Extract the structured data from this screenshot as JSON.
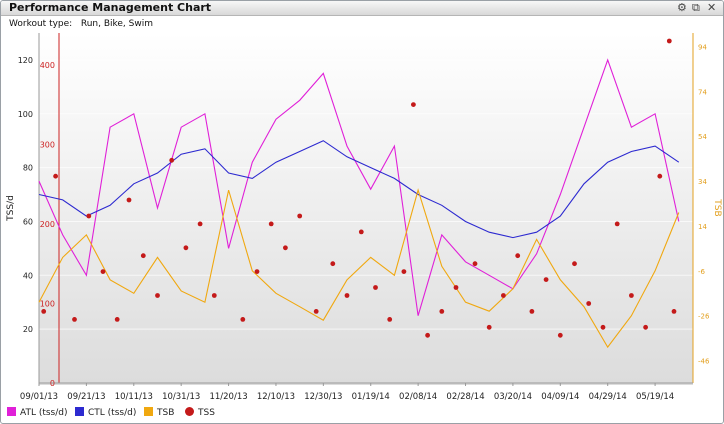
{
  "window": {
    "title": "Performance Management Chart",
    "icons": [
      "gear-icon",
      "popout-icon",
      "close-icon"
    ]
  },
  "header": {
    "workout_label": "Workout type:",
    "workout_value": "Run, Bike, Swim"
  },
  "colors": {
    "atl": "#e020d8",
    "ctl": "#2d2ad0",
    "tsb": "#f0a810",
    "tss": "#c41a1a",
    "left_axis_tss": "#cc2222",
    "right_axis": "#e3a020"
  },
  "chart_data": {
    "type": "line",
    "x_ticks": [
      "09/01/13",
      "09/21/13",
      "10/11/13",
      "10/31/13",
      "11/20/13",
      "12/10/13",
      "12/30/13",
      "01/19/14",
      "02/08/14",
      "02/28/14",
      "03/20/14",
      "04/09/14",
      "04/29/14",
      "05/19/14"
    ],
    "y_left": {
      "label": "TSS/d",
      "ticks": [
        20,
        40,
        60,
        80,
        100,
        120
      ],
      "ylim": [
        0,
        130
      ]
    },
    "y_left_tss": {
      "ticks": [
        0,
        100,
        200,
        300,
        400
      ],
      "ylim": [
        0,
        440
      ]
    },
    "y_right": {
      "label": "TSB",
      "ticks": [
        -46,
        -26,
        -6,
        14,
        34,
        54,
        74,
        94
      ],
      "ylim": [
        -56,
        100
      ]
    },
    "legend": {
      "placement": "bottom-left"
    },
    "series": [
      {
        "name": "ATL (tss/d)",
        "axis": "left",
        "x": [
          "09/01/13",
          "09/11/13",
          "09/21/13",
          "10/01/13",
          "10/11/13",
          "10/21/13",
          "10/31/13",
          "11/10/13",
          "11/20/13",
          "11/30/13",
          "12/10/13",
          "12/20/13",
          "12/30/13",
          "01/09/14",
          "01/19/14",
          "01/29/14",
          "02/08/14",
          "02/18/14",
          "02/28/14",
          "03/10/14",
          "03/20/14",
          "03/30/14",
          "04/09/14",
          "04/19/14",
          "04/29/14",
          "05/09/14",
          "05/19/14",
          "05/29/14"
        ],
        "values": [
          75,
          55,
          40,
          95,
          100,
          65,
          95,
          100,
          50,
          82,
          98,
          105,
          115,
          88,
          72,
          88,
          25,
          55,
          45,
          40,
          35,
          48,
          70,
          95,
          120,
          95,
          100,
          60
        ]
      },
      {
        "name": "CTL (tss/d)",
        "axis": "left",
        "x": [
          "09/01/13",
          "09/11/13",
          "09/21/13",
          "10/01/13",
          "10/11/13",
          "10/21/13",
          "10/31/13",
          "11/10/13",
          "11/20/13",
          "11/30/13",
          "12/10/13",
          "12/20/13",
          "12/30/13",
          "01/09/14",
          "01/19/14",
          "01/29/14",
          "02/08/14",
          "02/18/14",
          "02/28/14",
          "03/10/14",
          "03/20/14",
          "03/30/14",
          "04/09/14",
          "04/19/14",
          "04/29/14",
          "05/09/14",
          "05/19/14",
          "05/29/14"
        ],
        "values": [
          70,
          68,
          62,
          66,
          74,
          78,
          85,
          87,
          78,
          76,
          82,
          86,
          90,
          84,
          80,
          76,
          70,
          66,
          60,
          56,
          54,
          56,
          62,
          74,
          82,
          86,
          88,
          82
        ]
      },
      {
        "name": "TSB",
        "axis": "right",
        "x": [
          "09/01/13",
          "09/11/13",
          "09/21/13",
          "10/01/13",
          "10/11/13",
          "10/21/13",
          "10/31/13",
          "11/10/13",
          "11/20/13",
          "11/30/13",
          "12/10/13",
          "12/20/13",
          "12/30/13",
          "01/09/14",
          "01/19/14",
          "01/29/14",
          "02/08/14",
          "02/18/14",
          "02/28/14",
          "03/10/14",
          "03/20/14",
          "03/30/14",
          "04/09/14",
          "04/19/14",
          "04/29/14",
          "05/09/14",
          "05/19/14",
          "05/29/14"
        ],
        "values": [
          -20,
          0,
          10,
          -10,
          -16,
          0,
          -15,
          -20,
          30,
          -6,
          -16,
          -22,
          -28,
          -10,
          0,
          -8,
          30,
          -4,
          -20,
          -24,
          -14,
          8,
          -10,
          -22,
          -40,
          -26,
          -6,
          20
        ]
      },
      {
        "name": "TSS",
        "axis": "left_tss",
        "kind": "scatter",
        "x": [
          "09/03/13",
          "09/08/13",
          "09/16/13",
          "09/22/13",
          "09/28/13",
          "10/04/13",
          "10/09/13",
          "10/15/13",
          "10/21/13",
          "10/27/13",
          "11/02/13",
          "11/08/13",
          "11/14/13",
          "11/26/13",
          "12/02/13",
          "12/08/13",
          "12/14/13",
          "12/20/13",
          "12/27/13",
          "01/03/14",
          "01/09/14",
          "01/15/14",
          "01/21/14",
          "01/27/14",
          "02/02/14",
          "02/06/14",
          "02/12/14",
          "02/18/14",
          "02/24/14",
          "03/04/14",
          "03/10/14",
          "03/16/14",
          "03/22/14",
          "03/28/14",
          "04/03/14",
          "04/09/14",
          "04/15/14",
          "04/21/14",
          "04/27/14",
          "05/03/14",
          "05/09/14",
          "05/15/14",
          "05/21/14",
          "05/25/14",
          "05/27/14"
        ],
        "values": [
          90,
          260,
          80,
          210,
          140,
          80,
          230,
          160,
          110,
          280,
          170,
          200,
          110,
          80,
          140,
          200,
          170,
          210,
          90,
          150,
          110,
          190,
          120,
          80,
          140,
          350,
          60,
          90,
          120,
          150,
          70,
          110,
          160,
          90,
          130,
          60,
          150,
          100,
          70,
          200,
          110,
          70,
          260,
          430,
          90
        ]
      }
    ]
  },
  "legend_items": [
    {
      "label": "ATL (tss/d)"
    },
    {
      "label": "CTL (tss/d)"
    },
    {
      "label": "TSB"
    },
    {
      "label": "TSS"
    }
  ]
}
